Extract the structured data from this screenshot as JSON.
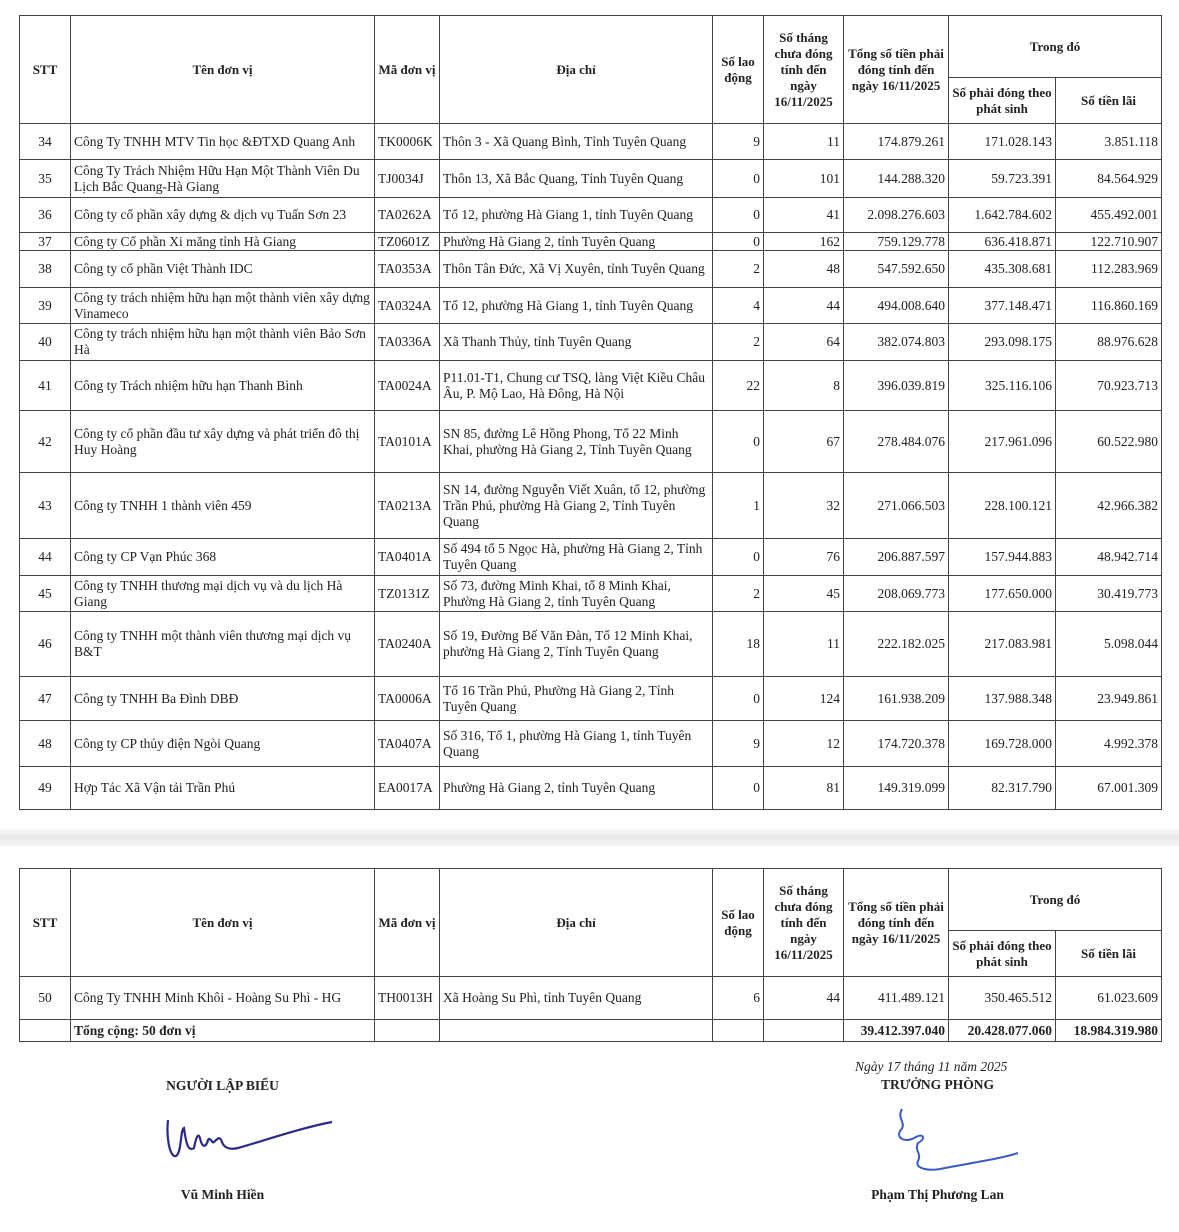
{
  "headers": {
    "stt": "STT",
    "ten": "Tên đơn vị",
    "ma": "Mã đơn vị",
    "diachi": "Địa chỉ",
    "solao": "Số lao động",
    "sothang": "Số tháng chưa đóng tính đến ngày 16/11/2025",
    "tongtien": "Tổng số tiền phải đóng tính đến ngày 16/11/2025",
    "trongdo": "Trong đó",
    "phatsinh": "Số phải đóng theo phát sinh",
    "lai": "Số tiền lãi"
  },
  "rows": [
    [
      "34",
      "Công Ty TNHH MTV Tin học &ĐTXD Quang Anh",
      "TK0006K",
      "Thôn 3 - Xã Quang Bình, Tỉnh Tuyên Quang",
      "9",
      "11",
      "174.879.261",
      "171.028.143",
      "3.851.118"
    ],
    [
      "35",
      "Công Ty Trách Nhiệm Hữu Hạn Một Thành Viên Du Lịch Bắc Quang-Hà Giang",
      "TJ0034J",
      "Thôn 13, Xã Bắc Quang, Tỉnh Tuyên Quang",
      "0",
      "101",
      "144.288.320",
      "59.723.391",
      "84.564.929"
    ],
    [
      "36",
      "Công ty cổ phần xây dựng & dịch vụ Tuấn Sơn 23",
      "TA0262A",
      "Tổ 12, phường Hà Giang 1, tỉnh Tuyên Quang",
      "0",
      "41",
      "2.098.276.603",
      "1.642.784.602",
      "455.492.001"
    ],
    [
      "37",
      "Công ty Cổ phần Xi măng tỉnh  Hà Giang",
      "TZ0601Z",
      "Phường  Hà Giang 2, tỉnh Tuyên Quang",
      "0",
      "162",
      "759.129.778",
      "636.418.871",
      "122.710.907"
    ],
    [
      "38",
      "Công ty cổ phần Việt Thành IDC",
      "TA0353A",
      "Thôn Tân Đức, Xã Vị Xuyên, tỉnh Tuyên Quang",
      "2",
      "48",
      "547.592.650",
      "435.308.681",
      "112.283.969"
    ],
    [
      "39",
      "Công ty trách nhiệm hữu hạn một thành viên xây dựng Vinameco",
      "TA0324A",
      "Tổ 12, phường Hà Giang 1, tỉnh Tuyên Quang",
      "4",
      "44",
      "494.008.640",
      "377.148.471",
      "116.860.169"
    ],
    [
      "40",
      "Công ty trách nhiệm hữu hạn một thành viên Bảo Sơn Hà",
      "TA0336A",
      "Xã Thanh Thủy, tỉnh Tuyên Quang",
      "2",
      "64",
      "382.074.803",
      "293.098.175",
      "88.976.628"
    ],
    [
      "41",
      "Công ty Trách nhiệm hữu hạn Thanh Bình",
      "TA0024A",
      "P11.01-T1, Chung cư TSQ, làng Việt Kiều Châu Âu, P. Mộ Lao, Hà Đông, Hà Nội",
      "22",
      "8",
      "396.039.819",
      "325.116.106",
      "70.923.713"
    ],
    [
      "42",
      "Công ty cổ phần đầu tư xây dựng và phát triển đô thị Huy Hoàng",
      "TA0101A",
      "SN 85, đường Lê Hồng Phong, Tổ 22 Minh Khai, phường Hà Giang 2, Tỉnh Tuyên Quang",
      "0",
      "67",
      "278.484.076",
      "217.961.096",
      "60.522.980"
    ],
    [
      "43",
      "Công ty TNHH 1 thành viên 459",
      "TA0213A",
      "SN 14, đường Nguyễn Viết Xuân, tổ 12, phường Trần Phú, phường Hà Giang 2, Tỉnh Tuyên Quang",
      "1",
      "32",
      "271.066.503",
      "228.100.121",
      "42.966.382"
    ],
    [
      "44",
      "Công ty CP Vạn Phúc 368",
      "TA0401A",
      "Số 494 tổ 5 Ngọc Hà,  phường Hà Giang 2, Tỉnh Tuyên Quang",
      "0",
      "76",
      "206.887.597",
      "157.944.883",
      "48.942.714"
    ],
    [
      "45",
      "Công ty TNHH thương mại dịch vụ và du lịch Hà Giang",
      "TZ0131Z",
      "Số 73, đường Minh Khai, tổ 8 Minh Khai, Phường Hà Giang 2, tỉnh Tuyên Quang",
      "2",
      "45",
      "208.069.773",
      "177.650.000",
      "30.419.773"
    ],
    [
      "46",
      "Công ty TNHH một thành viên thương mại dịch vụ B&T",
      "TA0240A",
      "Số 19, Đường Bế Văn Đàn, Tổ 12 Minh Khai, phường Hà Giang 2, Tỉnh Tuyên Quang",
      "18",
      "11",
      "222.182.025",
      "217.083.981",
      "5.098.044"
    ],
    [
      "47",
      "Công ty TNHH Ba Đình DBĐ",
      "TA0006A",
      "Tổ 16 Trần Phú, Phường Hà Giang 2, Tỉnh Tuyên Quang",
      "0",
      "124",
      "161.938.209",
      "137.988.348",
      "23.949.861"
    ],
    [
      "48",
      "Công ty CP thủy điện Ngòi Quang",
      "TA0407A",
      "Số 316, Tổ 1, phường Hà Giang 1, tỉnh Tuyên Quang",
      "9",
      "12",
      "174.720.378",
      "169.728.000",
      "4.992.378"
    ],
    [
      "49",
      "Hợp Tác Xã Vận tải Trần Phú",
      "EA0017A",
      "Phường Hà Giang 2, tỉnh Tuyên Quang",
      "0",
      "81",
      "149.319.099",
      "82.317.790",
      "67.001.309"
    ]
  ],
  "rows2": [
    [
      "50",
      "Công Ty TNHH Minh Khôi - Hoàng Su Phì - HG",
      "TH0013H",
      "Xã Hoàng Su Phì, tỉnh Tuyên Quang",
      "6",
      "44",
      "411.489.121",
      "350.465.512",
      "61.023.609"
    ]
  ],
  "total": {
    "label": "Tổng cộng: 50 đơn vị",
    "tongtien": "39.412.397.040",
    "phatsinh": "20.428.077.060",
    "lai": "18.984.319.980"
  },
  "footer": {
    "left_title": "NGƯỜI LẬP BIỂU",
    "left_name": "Vũ Minh Hiền",
    "date": "Ngày 17 tháng 11 năm 2025",
    "right_title": "TRƯỞNG PHÒNG",
    "right_name": "Phạm Thị Phương Lan",
    "signature_color": "#2a2a8a"
  }
}
